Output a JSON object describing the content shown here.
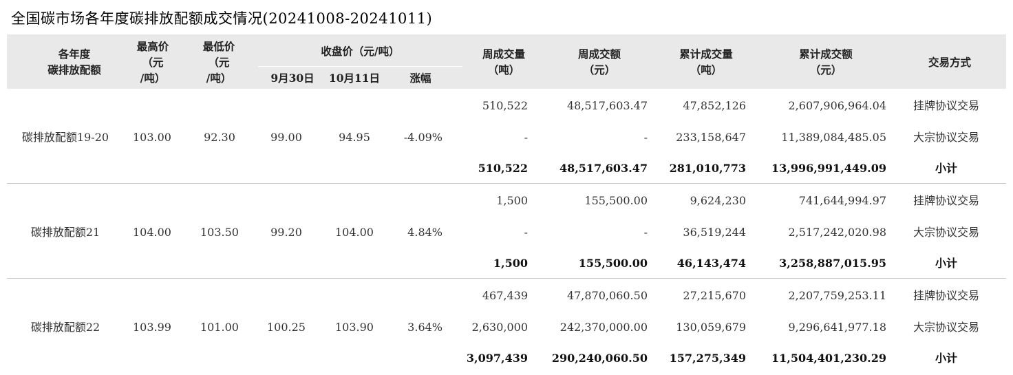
{
  "title": "全国碳市场各年度碳排放配额成交情况(20241008-20241011)",
  "headers": {
    "vintage": [
      "各年度",
      "碳排放配额"
    ],
    "high": [
      "最高价",
      "（元",
      "/吨）"
    ],
    "low": [
      "最低价",
      "（元",
      "/吨）"
    ],
    "close": "收盘价（元/吨）",
    "sep30": "9月30日",
    "oct11": "10月11日",
    "change": "涨幅",
    "week_vol": [
      "周成交量",
      "（吨）"
    ],
    "week_amt": [
      "周成交额",
      "（元）"
    ],
    "cum_vol": [
      "累计成交量",
      "（吨）"
    ],
    "cum_amt": [
      "累计成交额",
      "（元）"
    ],
    "method": "交易方式"
  },
  "groups": [
    {
      "name": "碳排放配额19-20",
      "high": "103.00",
      "low": "92.30",
      "close_sep30": "99.00",
      "close_oct11": "94.95",
      "change": "-4.09%",
      "rows": [
        {
          "week_vol": "510,522",
          "week_amt": "48,517,603.47",
          "cum_vol": "47,852,126",
          "cum_amt": "2,607,906,964.04",
          "method": "挂牌协议交易"
        },
        {
          "week_vol": "-",
          "week_amt": "-",
          "cum_vol": "233,158,647",
          "cum_amt": "11,389,084,485.05",
          "method": "大宗协议交易"
        },
        {
          "week_vol": "510,522",
          "week_amt": "48,517,603.47",
          "cum_vol": "281,010,773",
          "cum_amt": "13,996,991,449.09",
          "method": "小计"
        }
      ]
    },
    {
      "name": "碳排放配额21",
      "high": "104.00",
      "low": "103.50",
      "close_sep30": "99.20",
      "close_oct11": "104.00",
      "change": "4.84%",
      "rows": [
        {
          "week_vol": "1,500",
          "week_amt": "155,500.00",
          "cum_vol": "9,624,230",
          "cum_amt": "741,644,994.97",
          "method": "挂牌协议交易"
        },
        {
          "week_vol": "-",
          "week_amt": "-",
          "cum_vol": "36,519,244",
          "cum_amt": "2,517,242,020.98",
          "method": "大宗协议交易"
        },
        {
          "week_vol": "1,500",
          "week_amt": "155,500.00",
          "cum_vol": "46,143,474",
          "cum_amt": "3,258,887,015.95",
          "method": "小计"
        }
      ]
    },
    {
      "name": "碳排放配额22",
      "high": "103.99",
      "low": "101.00",
      "close_sep30": "100.25",
      "close_oct11": "103.90",
      "change": "3.64%",
      "rows": [
        {
          "week_vol": "467,439",
          "week_amt": "47,870,060.50",
          "cum_vol": "27,215,670",
          "cum_amt": "2,207,759,253.11",
          "method": "挂牌协议交易"
        },
        {
          "week_vol": "2,630,000",
          "week_amt": "242,370,000.00",
          "cum_vol": "130,059,679",
          "cum_amt": "9,296,641,977.18",
          "method": "大宗协议交易"
        },
        {
          "week_vol": "3,097,439",
          "week_amt": "290,240,060.50",
          "cum_vol": "157,275,349",
          "cum_amt": "11,504,401,230.29",
          "method": "小计"
        }
      ]
    }
  ]
}
